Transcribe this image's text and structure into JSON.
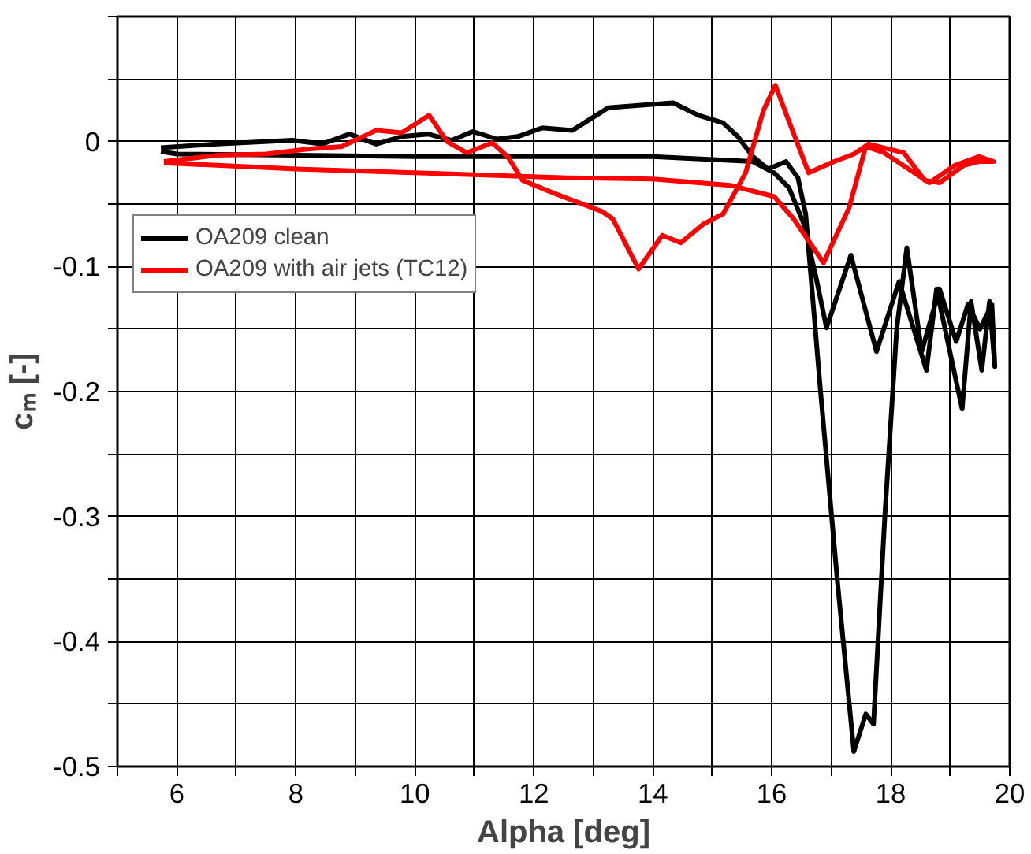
{
  "chart_data": {
    "type": "line",
    "xlabel": "Alpha [deg]",
    "ylabel": "cₘ [-]",
    "xlim": [
      5,
      20
    ],
    "ylim": [
      -0.5,
      0.1
    ],
    "xticks": [
      {
        "value": 5,
        "label": null
      },
      6,
      {
        "value": 7,
        "label": null
      },
      8,
      {
        "value": 9,
        "label": null
      },
      10,
      {
        "value": 11,
        "label": null
      },
      12,
      {
        "value": 13,
        "label": null
      },
      14,
      {
        "value": 15,
        "label": null
      },
      16,
      {
        "value": 17,
        "label": null
      },
      18,
      {
        "value": 19,
        "label": null
      },
      20
    ],
    "yticks": [
      -0.5,
      {
        "value": -0.45,
        "label": null
      },
      -0.4,
      {
        "value": -0.35,
        "label": null
      },
      -0.3,
      {
        "value": -0.25,
        "label": null
      },
      -0.2,
      {
        "value": -0.15,
        "label": null
      },
      -0.1,
      {
        "value": -0.05,
        "label": null
      },
      0,
      {
        "value": 0.05,
        "label": null
      },
      {
        "value": 0.1,
        "label": null
      }
    ],
    "grid": true,
    "legend": "left",
    "marker": "none",
    "line_style": "solid",
    "series": [
      {
        "name": "OA209 clean",
        "color": "#000000",
        "x": [
          5.73,
          6.67,
          7.94,
          8.44,
          8.9,
          9.35,
          9.78,
          10.22,
          10.62,
          10.97,
          11.38,
          11.73,
          12.14,
          12.65,
          13.25,
          13.76,
          14.34,
          14.77,
          15.18,
          15.43,
          15.68,
          15.94,
          16.24,
          16.44,
          16.57,
          16.82,
          17.1,
          17.38,
          17.58,
          17.71,
          17.9,
          18.1,
          18.27,
          18.52,
          18.82,
          19.1,
          19.3,
          19.5,
          19.7,
          19.75,
          19.66,
          19.53,
          19.35,
          19.2,
          18.77,
          18.6,
          18.14,
          17.76,
          17.33,
          16.92,
          16.75,
          16.54,
          16.29,
          16.04,
          15.68,
          14.0,
          12.0,
          10.0,
          8.0,
          6.0,
          5.73
        ],
        "values": [
          -0.005,
          -0.002,
          0.001,
          -0.002,
          0.006,
          -0.002,
          0.004,
          0.006,
          0.001,
          0.008,
          0.002,
          0.004,
          0.011,
          0.009,
          0.027,
          0.029,
          0.031,
          0.021,
          0.015,
          0.004,
          -0.012,
          -0.022,
          -0.016,
          -0.029,
          -0.058,
          -0.2,
          -0.35,
          -0.488,
          -0.458,
          -0.466,
          -0.3,
          -0.15,
          -0.085,
          -0.168,
          -0.118,
          -0.16,
          -0.13,
          -0.15,
          -0.13,
          -0.18,
          -0.128,
          -0.183,
          -0.128,
          -0.214,
          -0.118,
          -0.183,
          -0.112,
          -0.168,
          -0.091,
          -0.149,
          -0.11,
          -0.066,
          -0.037,
          -0.025,
          -0.016,
          -0.012,
          -0.012,
          -0.012,
          -0.011,
          -0.01,
          -0.008
        ]
      },
      {
        "name": "OA209 with air jets (TC12)",
        "color": "#ff0000",
        "x": [
          5.78,
          8.0,
          10.0,
          12.57,
          14.0,
          15.3,
          16.04,
          16.37,
          16.87,
          17.3,
          17.58,
          17.89,
          18.65,
          19.08,
          19.48,
          19.73,
          19.48,
          19.23,
          18.82,
          18.57,
          18.22,
          17.63,
          17.38,
          17.05,
          16.62,
          16.29,
          16.06,
          15.86,
          15.56,
          15.18,
          14.85,
          14.47,
          14.16,
          13.76,
          13.33,
          13.15,
          12.32,
          11.81,
          11.56,
          11.3,
          10.87,
          10.54,
          10.24,
          9.78,
          9.35,
          8.77,
          8.19,
          7.5,
          6.67,
          5.78
        ],
        "values": [
          -0.017,
          -0.022,
          -0.025,
          -0.029,
          -0.03,
          -0.035,
          -0.044,
          -0.062,
          -0.097,
          -0.053,
          -0.004,
          -0.009,
          -0.033,
          -0.019,
          -0.012,
          -0.016,
          -0.016,
          -0.019,
          -0.033,
          -0.031,
          -0.009,
          -0.002,
          -0.01,
          -0.016,
          -0.025,
          0.016,
          0.045,
          0.025,
          -0.025,
          -0.058,
          -0.066,
          -0.081,
          -0.075,
          -0.102,
          -0.062,
          -0.056,
          -0.041,
          -0.031,
          -0.012,
          -0.001,
          -0.009,
          0.0,
          0.021,
          0.007,
          0.009,
          -0.004,
          -0.006,
          -0.01,
          -0.011,
          -0.016
        ]
      }
    ]
  }
}
